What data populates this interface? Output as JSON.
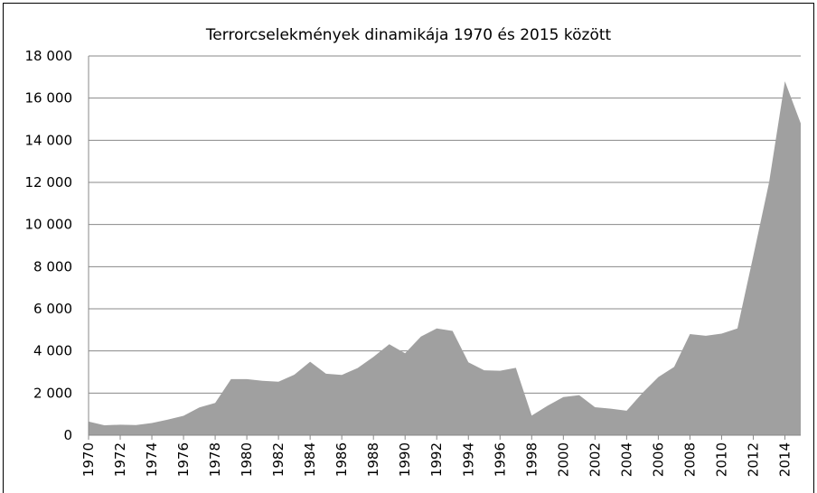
{
  "chart_data": {
    "type": "area",
    "title": "Terrorcselekmények dinamikája 1970 és 2015 között",
    "x": [
      1970,
      1971,
      1972,
      1973,
      1974,
      1975,
      1976,
      1977,
      1978,
      1979,
      1980,
      1981,
      1982,
      1983,
      1984,
      1985,
      1986,
      1987,
      1988,
      1989,
      1990,
      1991,
      1992,
      1993,
      1994,
      1995,
      1996,
      1997,
      1998,
      1999,
      2000,
      2001,
      2002,
      2003,
      2004,
      2005,
      2006,
      2007,
      2008,
      2009,
      2010,
      2011,
      2012,
      2013,
      2014,
      2015
    ],
    "series": [
      {
        "color": "#a0a0a0",
        "values": [
          650,
          470,
          500,
          480,
          580,
          740,
          920,
          1320,
          1530,
          2660,
          2660,
          2580,
          2540,
          2870,
          3490,
          2920,
          2860,
          3190,
          3720,
          4320,
          3890,
          4680,
          5070,
          4950,
          3460,
          3080,
          3060,
          3200,
          930,
          1400,
          1810,
          1900,
          1330,
          1260,
          1160,
          2010,
          2760,
          3240,
          4800,
          4720,
          4820,
          5070,
          8500,
          12000,
          16800,
          14800
        ]
      }
    ],
    "xlim": [
      1970,
      2015
    ],
    "xticks": [
      1970,
      1972,
      1974,
      1976,
      1978,
      1980,
      1982,
      1984,
      1986,
      1988,
      1990,
      1992,
      1994,
      1996,
      1998,
      2000,
      2002,
      2004,
      2006,
      2008,
      2010,
      2012,
      2014
    ],
    "ylim": [
      0,
      18000
    ],
    "yticks": [
      0,
      {
        "value": 2000,
        "label": "2 000"
      },
      {
        "value": 4000,
        "label": "4 000"
      },
      {
        "value": 6000,
        "label": "6 000"
      },
      {
        "value": 8000,
        "label": "8 000"
      },
      {
        "value": 10000,
        "label": "10 000"
      },
      {
        "value": 12000,
        "label": "12 000"
      },
      {
        "value": 14000,
        "label": "14 000"
      },
      {
        "value": 16000,
        "label": "16 000"
      },
      {
        "value": 18000,
        "label": "18 000"
      }
    ],
    "grid": true
  }
}
